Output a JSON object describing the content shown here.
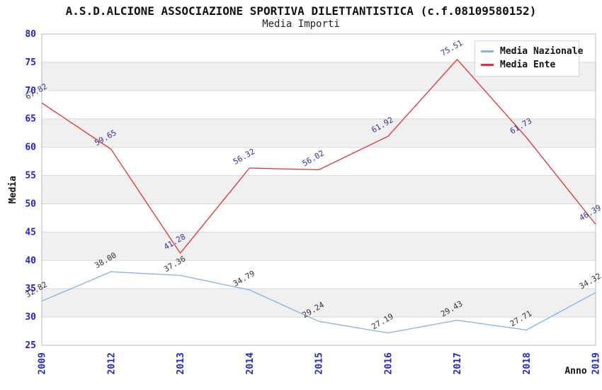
{
  "page": {
    "title": "A.S.D.ALCIONE ASSOCIAZIONE SPORTIVA DILETTANTISTICA (c.f.08109580152)",
    "subtitle": "Media Importi"
  },
  "legend": {
    "position": "top-right",
    "items": [
      {
        "label": "Media Nazionale",
        "color": "#7db3e8"
      },
      {
        "label": "Media Ente",
        "color": "#e03232"
      }
    ]
  },
  "colors": {
    "axis_tick_label": "#2424cc",
    "band_gray": "#f0f0f0",
    "band_white": "#ffffff",
    "gridline": "#d9d9d9",
    "plot_border": "#b8b8b8",
    "axis_title": "#111111"
  },
  "chart_data": {
    "type": "line",
    "title": "A.S.D.ALCIONE ASSOCIAZIONE SPORTIVA DILETTANTISTICA (c.f.08109580152)",
    "subtitle": "Media Importi",
    "xlabel": "Anno",
    "ylabel": "Media",
    "ylim": [
      25,
      80
    ],
    "ytick_step": 5,
    "grid": "horizontal-bands-alternating",
    "legend_position": "top-right",
    "categories": [
      "2009",
      "2012",
      "2013",
      "2014",
      "2015",
      "2016",
      "2017",
      "2018",
      "2019"
    ],
    "series": [
      {
        "name": "Media Nazionale",
        "color": "#7db3e8",
        "label_color": "#333333",
        "values": [
          32.82,
          38.0,
          37.36,
          34.79,
          29.24,
          27.19,
          29.43,
          27.71,
          34.32
        ]
      },
      {
        "name": "Media Ente",
        "color": "#e03232",
        "label_color": "#333399",
        "values": [
          67.82,
          59.65,
          41.28,
          56.32,
          56.02,
          61.92,
          75.51,
          61.73,
          46.39
        ]
      }
    ]
  }
}
